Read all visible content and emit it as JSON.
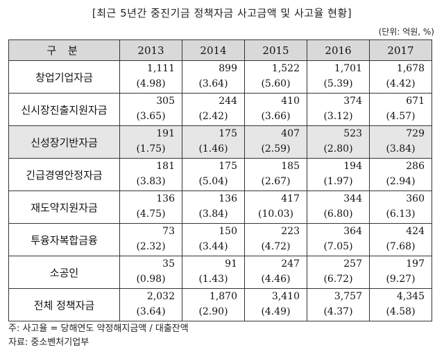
{
  "title": "[최근 5년간 중진기금 정책자금 사고금액 및 사고율 현황]",
  "unit": "(단위: 억원, %)",
  "header": {
    "row_label": "구 분",
    "years": [
      "2013",
      "2014",
      "2015",
      "2016",
      "2017"
    ]
  },
  "rows": [
    {
      "name": "창업기업자금",
      "shaded": false,
      "amounts": [
        "1,111",
        "899",
        "1,522",
        "1,701",
        "1,678"
      ],
      "ratios": [
        "(4.98)",
        "(3.64)",
        "(5.60)",
        "(5.39)",
        "(4.42)"
      ]
    },
    {
      "name": "신시장진출지원자금",
      "shaded": false,
      "amounts": [
        "305",
        "244",
        "410",
        "374",
        "671"
      ],
      "ratios": [
        "(3.65)",
        "(2.42)",
        "(3.66)",
        "(3.12)",
        "(4.57)"
      ]
    },
    {
      "name": "신성장기반자금",
      "shaded": true,
      "amounts": [
        "191",
        "175",
        "407",
        "523",
        "729"
      ],
      "ratios": [
        "(1.75)",
        "(1.46)",
        "(2.59)",
        "(2.80)",
        "(3.84)"
      ]
    },
    {
      "name": "긴급경영안정자금",
      "shaded": false,
      "amounts": [
        "181",
        "175",
        "185",
        "194",
        "286"
      ],
      "ratios": [
        "(3.83)",
        "(5.04)",
        "(2.67)",
        "(1.97)",
        "(2.94)"
      ]
    },
    {
      "name": "재도약지원자금",
      "shaded": false,
      "amounts": [
        "136",
        "136",
        "417",
        "344",
        "360"
      ],
      "ratios": [
        "(4.75)",
        "(3.84)",
        "(10.03)",
        "(6.80)",
        "(6.13)"
      ]
    },
    {
      "name": "투융자복합금융",
      "shaded": false,
      "amounts": [
        "73",
        "150",
        "223",
        "364",
        "424"
      ],
      "ratios": [
        "(2.32)",
        "(3.44)",
        "(4.72)",
        "(7.05)",
        "(7.68)"
      ]
    },
    {
      "name": "소공인",
      "shaded": false,
      "amounts": [
        "35",
        "91",
        "247",
        "257",
        "197"
      ],
      "ratios": [
        "(0.98)",
        "(1.43)",
        "(4.46)",
        "(6.72)",
        "(9.27)"
      ]
    },
    {
      "name": "전체 정책자금",
      "shaded": false,
      "amounts": [
        "2,032",
        "1,870",
        "3,410",
        "3,757",
        "4,345"
      ],
      "ratios": [
        "(3.64)",
        "(2.90)",
        "(4.49)",
        "(4.37)",
        "(4.58)"
      ]
    }
  ],
  "notes": [
    "주: 사고율 = 당해연도 약정해지금액 / 대출잔액",
    "자료: 중소벤처기업부"
  ],
  "colors": {
    "header_bg": "#d9d9d9",
    "shaded_row_bg": "#e6e6e6",
    "border": "#333333"
  }
}
